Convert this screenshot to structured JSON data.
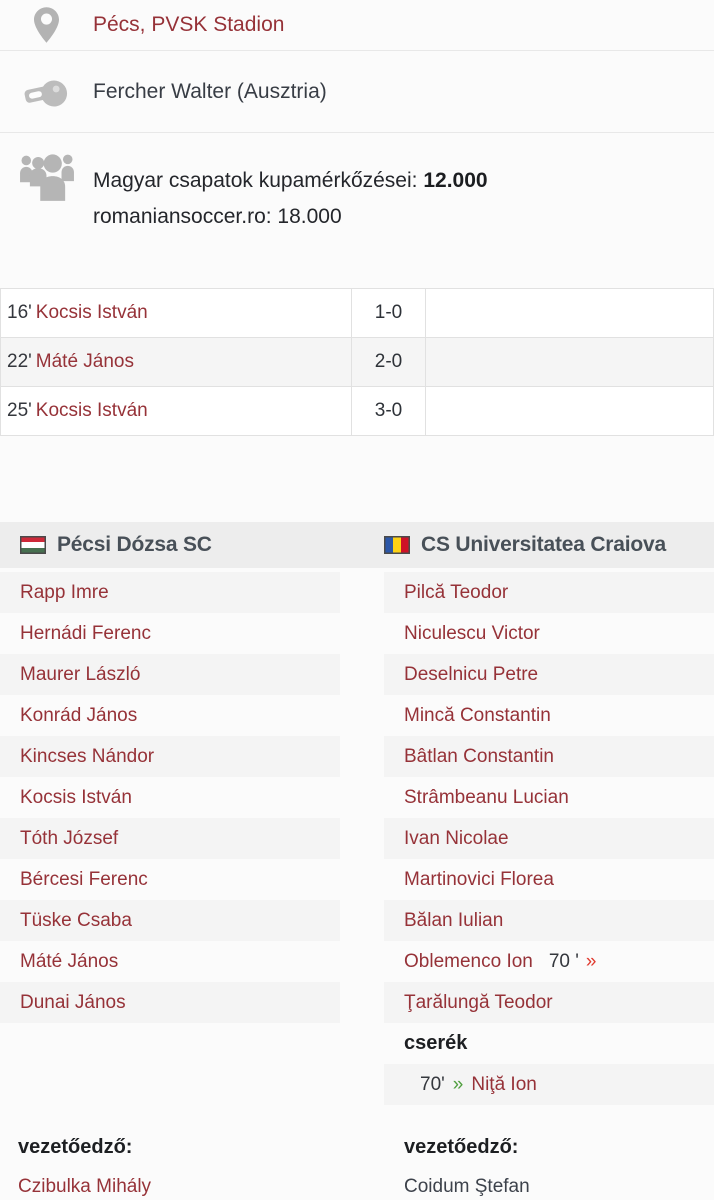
{
  "info": {
    "venue": {
      "icon": "location-pin-icon",
      "text": "Pécs, PVSK Stadion"
    },
    "referee": {
      "icon": "whistle-icon",
      "text": "Fercher Walter (Ausztria)"
    },
    "attendance": {
      "icon": "spectators-icon",
      "line1_label": "Magyar csapatok kupamérkőzései:",
      "line1_value": "12.000",
      "line2": "romaniansoccer.ro: 18.000"
    }
  },
  "goals": {
    "rows": [
      {
        "minute": "16'",
        "scorer": "Kocsis István",
        "score": "1-0"
      },
      {
        "minute": "22'",
        "scorer": "Máté János",
        "score": "2-0"
      },
      {
        "minute": "25'",
        "scorer": "Kocsis István",
        "score": "3-0"
      }
    ]
  },
  "icons": {
    "out_arrow": "»",
    "in_arrow": "»"
  },
  "teams": {
    "home": {
      "flag": "hungary-flag-icon",
      "name": "Pécsi Dózsa SC",
      "players": [
        {
          "name": "Rapp Imre"
        },
        {
          "name": "Hernádi Ferenc"
        },
        {
          "name": "Maurer László"
        },
        {
          "name": "Konrád János"
        },
        {
          "name": "Kincses Nándor"
        },
        {
          "name": "Kocsis István"
        },
        {
          "name": "Tóth József"
        },
        {
          "name": "Bércesi Ferenc"
        },
        {
          "name": "Tüske Csaba"
        },
        {
          "name": "Máté János"
        },
        {
          "name": "Dunai János"
        }
      ],
      "coach_label": "vezetőedző:",
      "coach": "Czibulka Mihály"
    },
    "away": {
      "flag": "romania-flag-icon",
      "name": "CS Universitatea Craiova",
      "players": [
        {
          "name": "Pilcă Teodor"
        },
        {
          "name": "Niculescu Victor"
        },
        {
          "name": "Deselnicu Petre"
        },
        {
          "name": "Mincă Constantin"
        },
        {
          "name": "Bâtlan Constantin"
        },
        {
          "name": "Strâmbeanu Lucian"
        },
        {
          "name": "Ivan Nicolae"
        },
        {
          "name": "Martinovici Florea"
        },
        {
          "name": "Bălan Iulian"
        },
        {
          "name": "Oblemenco Ion",
          "out_minute": "70 '"
        },
        {
          "name": "Ţarălungă Teodor"
        }
      ],
      "subs_header": "cserék",
      "subs": [
        {
          "minute": "70'",
          "name": "Niţă Ion"
        }
      ],
      "coach_label": "vezetőedző:",
      "coach": "Coidum Ştefan"
    }
  },
  "colors": {
    "link_red": "#963238",
    "dark_text": "#383d45",
    "arrow_out_red": "#e03a2f",
    "arrow_in_green": "#4f9e3e",
    "row_alt_bg": "#f4f4f4",
    "header_bg": "#ededed",
    "hungary_flag": [
      "#CE2939",
      "#ffffff",
      "#477050"
    ],
    "romania_flag": [
      "#2b57a8",
      "#fcd116",
      "#ce1126"
    ]
  }
}
